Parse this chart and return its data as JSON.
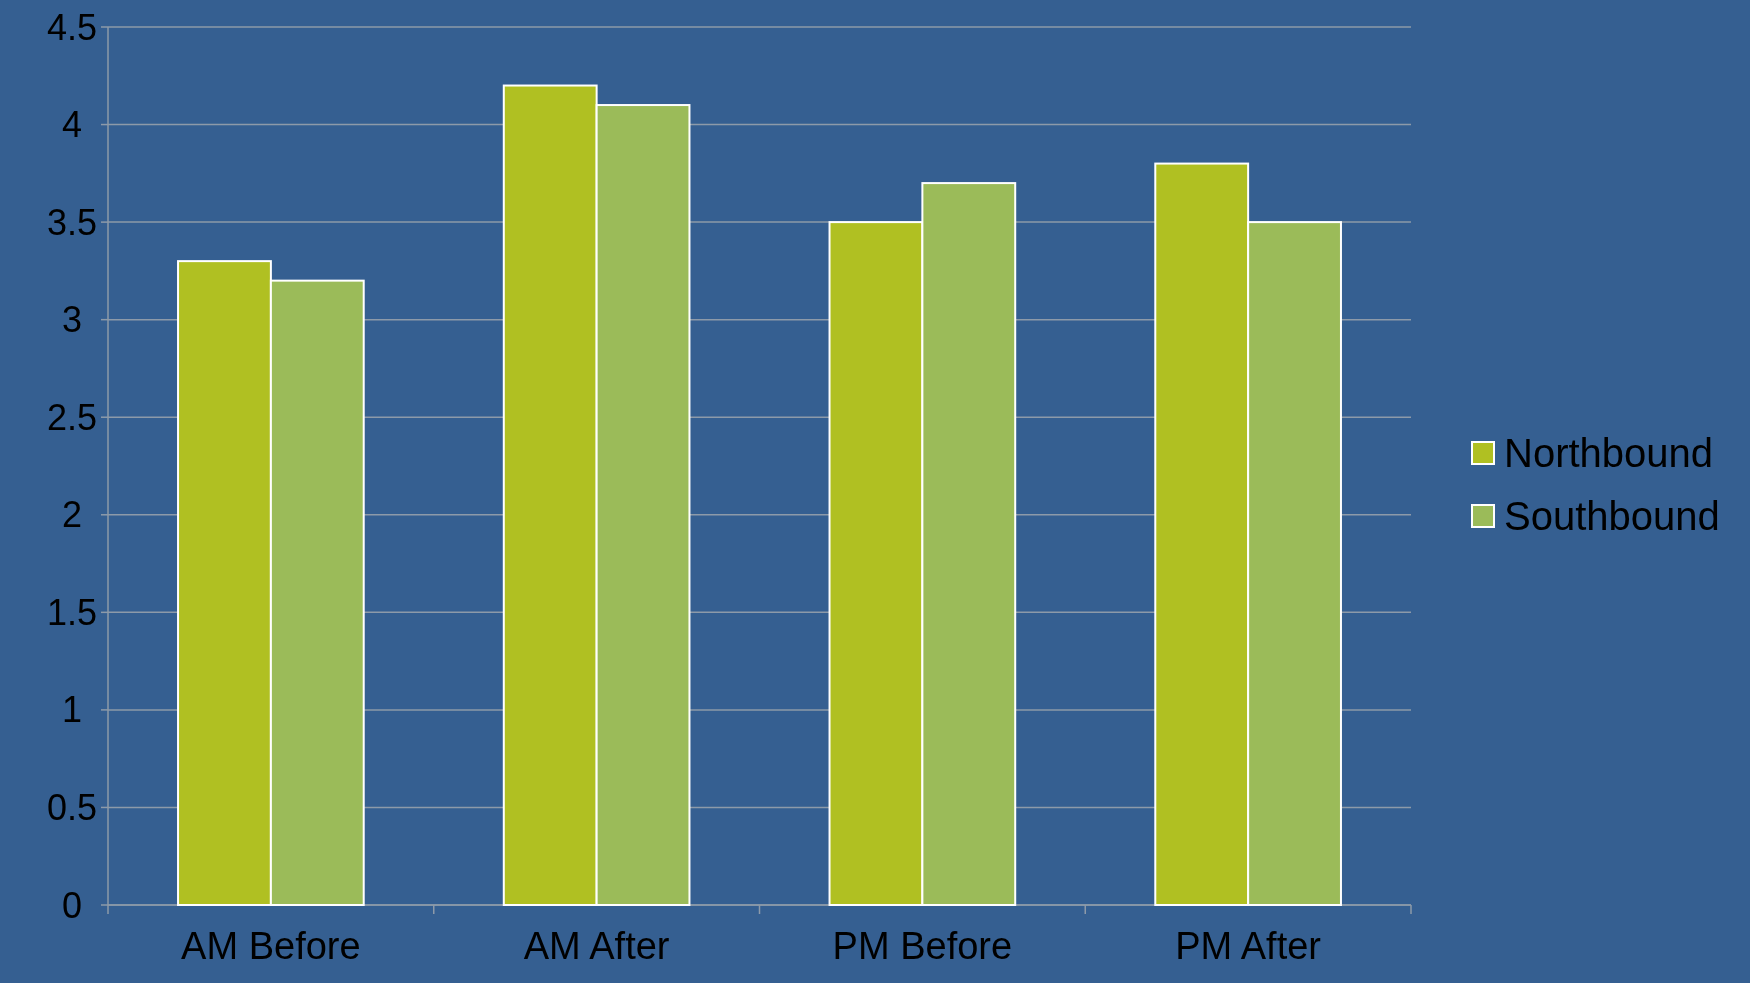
{
  "chart_data": {
    "type": "bar",
    "categories": [
      "AM Before",
      "AM After",
      "PM Before",
      "PM After"
    ],
    "series": [
      {
        "name": "Northbound",
        "color": "#b0c022",
        "values": [
          3.3,
          4.2,
          3.5,
          3.8
        ]
      },
      {
        "name": "Southbound",
        "color": "#9bbb59",
        "values": [
          3.2,
          4.1,
          3.7,
          3.5
        ]
      }
    ],
    "ylim": [
      0,
      4.5
    ],
    "yticks": [
      0,
      0.5,
      1,
      1.5,
      2,
      2.5,
      3,
      3.5,
      4,
      4.5
    ],
    "grid": "y",
    "legend": "right"
  }
}
